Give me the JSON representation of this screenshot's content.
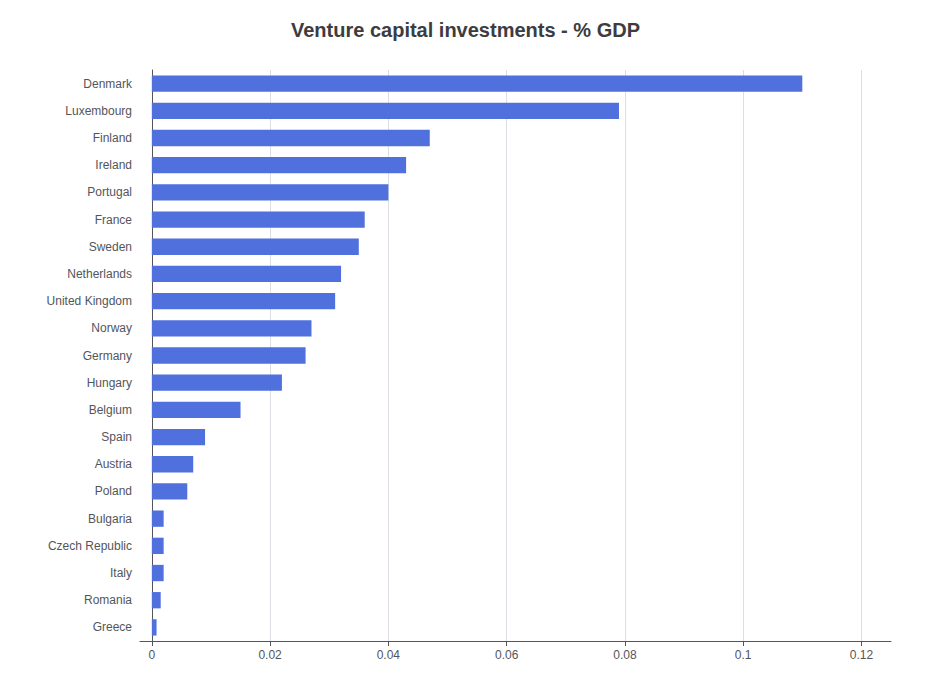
{
  "chart_data": {
    "type": "bar",
    "title": "Venture capital investments - % GDP",
    "orientation": "horizontal",
    "categories": [
      "Denmark",
      "Luxembourg",
      "Finland",
      "Ireland",
      "Portugal",
      "France",
      "Sweden",
      "Netherlands",
      "United Kingdom",
      "Norway",
      "Germany",
      "Hungary",
      "Belgium",
      "Spain",
      "Austria",
      "Poland",
      "Bulgaria",
      "Czech Republic",
      "Italy",
      "Romania",
      "Greece"
    ],
    "values": [
      0.11,
      0.079,
      0.047,
      0.043,
      0.04,
      0.036,
      0.035,
      0.032,
      0.031,
      0.027,
      0.026,
      0.022,
      0.015,
      0.009,
      0.007,
      0.006,
      0.002,
      0.002,
      0.002,
      0.0015,
      0.0008
    ],
    "xlim": [
      -0.002,
      0.125
    ],
    "xticks": [
      0,
      0.02,
      0.04,
      0.06,
      0.08,
      0.1,
      0.12
    ],
    "grid": true
  }
}
